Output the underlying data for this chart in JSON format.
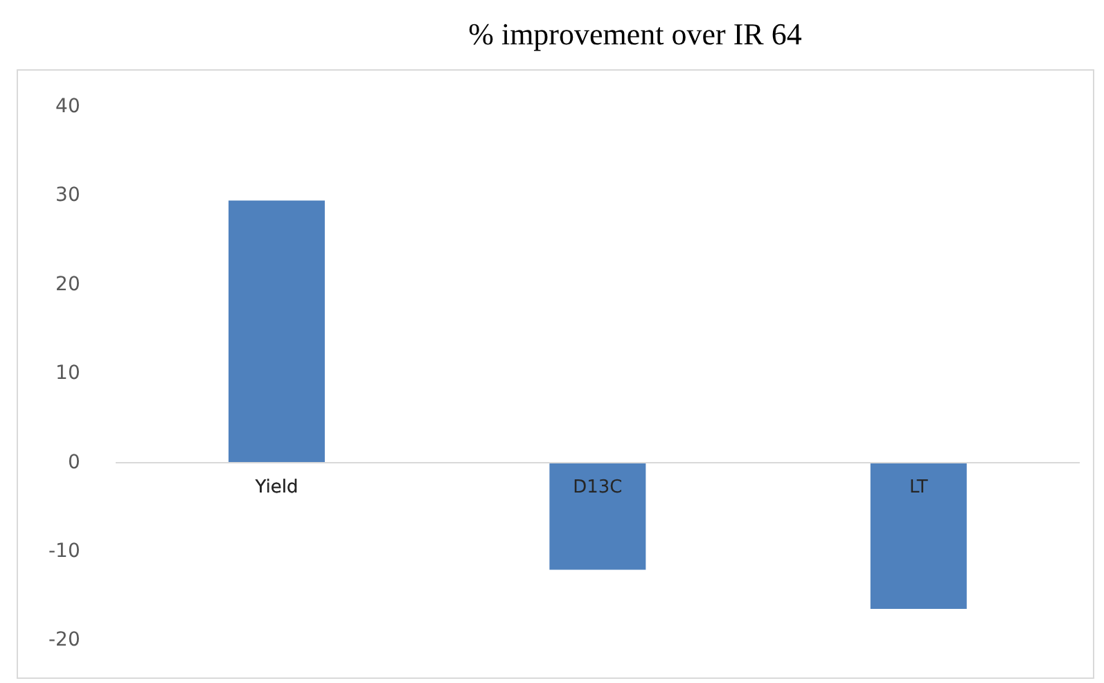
{
  "chart_data": {
    "type": "bar",
    "title": "% improvement over IR 64",
    "categories": [
      "Yield",
      "D13C",
      "LT"
    ],
    "values": [
      29.5,
      -12.0,
      -16.4
    ],
    "color": "#4f81bd",
    "ylim": [
      -20,
      40
    ],
    "yticks": [
      -20,
      -10,
      0,
      10,
      20,
      30,
      40
    ],
    "grid": false
  }
}
